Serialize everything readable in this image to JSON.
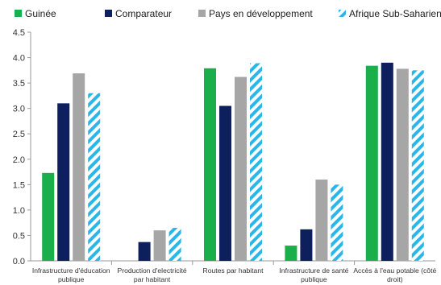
{
  "chart_data": {
    "type": "bar",
    "title": "",
    "xlabel": "",
    "ylabel": "",
    "ylim": [
      0,
      4.5
    ],
    "yticks": [
      "0.0",
      "0.5",
      "1.0",
      "1.5",
      "2.0",
      "2.5",
      "3.0",
      "3.5",
      "4.0",
      "4.5"
    ],
    "grid": false,
    "legend_position": "top",
    "categories": [
      [
        "Infrastructure d'éducation",
        "publique"
      ],
      [
        "Production d'electricité",
        "par habitant"
      ],
      [
        "Routes par habitant"
      ],
      [
        "Infrastructure de santé",
        "publique"
      ],
      [
        "Accès à l'eau potable (côté",
        "droit)"
      ]
    ],
    "series": [
      {
        "name": "Guinée",
        "color": "#1aaf4b",
        "pattern": "solid",
        "values": [
          1.73,
          0,
          3.79,
          0.3,
          3.84
        ]
      },
      {
        "name": "Comparateur",
        "color": "#0d1f5c",
        "pattern": "solid",
        "values": [
          3.1,
          0.37,
          3.05,
          0.62,
          3.9
        ]
      },
      {
        "name": "Pays en développement",
        "color": "#a6a6a6",
        "pattern": "solid",
        "values": [
          3.69,
          0.6,
          3.62,
          1.6,
          3.78
        ]
      },
      {
        "name": "Afrique Sub-Saharienne",
        "color": "#29b6e8",
        "pattern": "diagonal-stripes",
        "values": [
          3.3,
          0.65,
          3.89,
          1.5,
          3.75
        ]
      }
    ]
  }
}
